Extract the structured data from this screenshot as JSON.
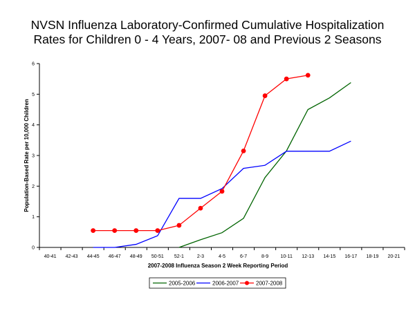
{
  "chart_data": {
    "type": "line",
    "title_line1": "NVSN Influenza Laboratory-Confirmed Cumulative Hospitalization",
    "title_line2": "Rates for Children 0 - 4 Years, 2007- 08 and Previous 2 Seasons",
    "xlabel": "2007-2008 Influenza Season 2 Week Reporting Period",
    "ylabel": "Population-Based Rate per 10,000 Children",
    "categories": [
      "40-41",
      "42-43",
      "44-45",
      "46-47",
      "48-49",
      "50-51",
      "52-1",
      "2-3",
      "4-5",
      "6-7",
      "8-9",
      "10-11",
      "12-13",
      "14-15",
      "16-17",
      "18-19",
      "20-21"
    ],
    "ylim": [
      0,
      6
    ],
    "yticks": [
      "0",
      "1",
      "2",
      "3",
      "4",
      "5",
      "6"
    ],
    "legend_position": "bottom",
    "series": [
      {
        "name": "2005-2006",
        "color": "#006400",
        "marker": false,
        "values": [
          null,
          null,
          null,
          null,
          null,
          null,
          0.0,
          0.25,
          0.48,
          0.95,
          2.28,
          3.15,
          4.5,
          4.88,
          5.38,
          null,
          null
        ]
      },
      {
        "name": "2006-2007",
        "color": "#0000ff",
        "marker": false,
        "values": [
          null,
          null,
          0.0,
          0.0,
          0.1,
          0.38,
          1.6,
          1.6,
          1.92,
          2.58,
          2.68,
          3.14,
          3.14,
          3.14,
          3.47,
          null,
          null
        ]
      },
      {
        "name": "2007-2008",
        "color": "#ff0000",
        "marker": true,
        "values": [
          null,
          null,
          0.55,
          0.55,
          0.55,
          0.55,
          0.72,
          1.28,
          1.83,
          3.15,
          4.95,
          5.5,
          5.62,
          null,
          null,
          null,
          null
        ]
      }
    ]
  }
}
